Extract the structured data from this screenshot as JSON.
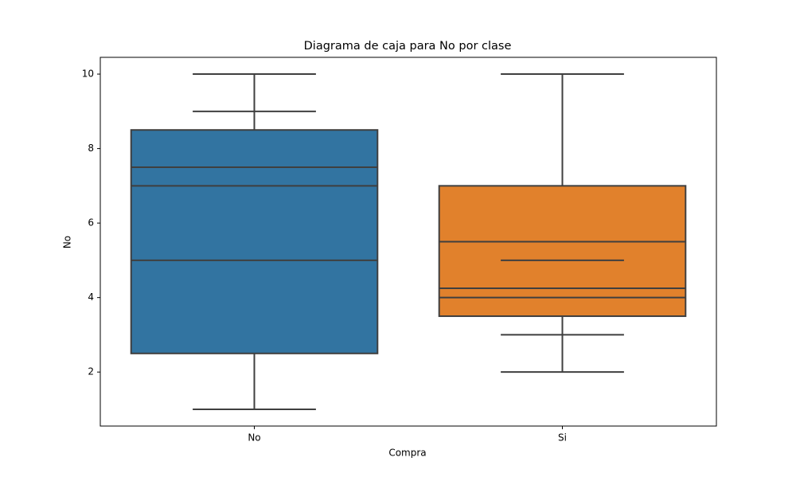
{
  "chart_data": {
    "type": "box",
    "title": "Diagrama de caja para No por clase",
    "x_label": "Compra",
    "y_label": "No",
    "categories": [
      "No",
      "Si"
    ],
    "colors": [
      "#3274a1",
      "#e1812c"
    ],
    "boxes": [
      {
        "whislo": 1,
        "q1": 2.5,
        "med": 5,
        "q3": 8.5,
        "whishi": 10,
        "lines": [
          7,
          7.5
        ],
        "caps": [
          9
        ]
      },
      {
        "whislo": 2,
        "q1": 3.5,
        "med": 4,
        "q3": 7,
        "whishi": 10,
        "lines": [
          4.25,
          5.5
        ],
        "caps": [
          3,
          5
        ]
      }
    ],
    "ylim": [
      0.55,
      10.45
    ],
    "yticks": [
      2,
      4,
      6,
      8,
      10
    ]
  }
}
